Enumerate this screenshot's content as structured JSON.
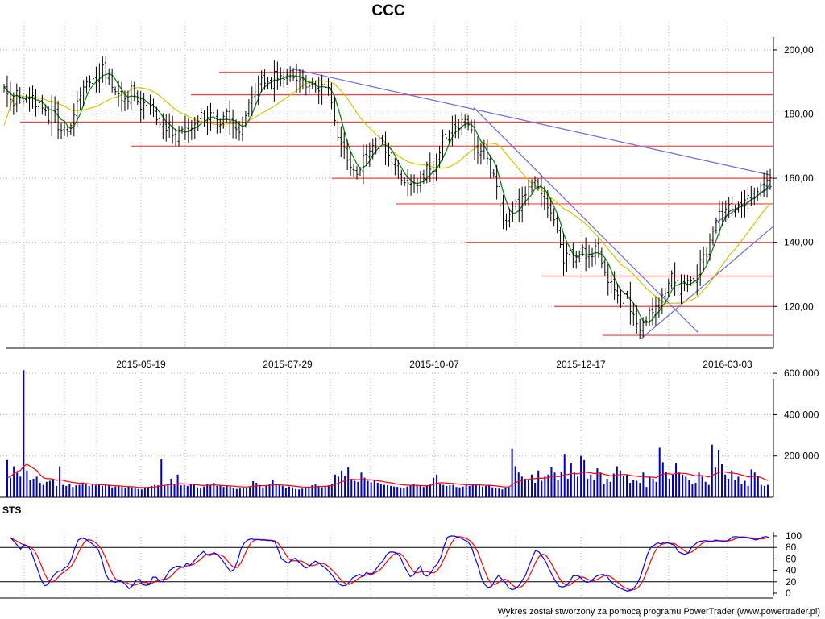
{
  "chart_data": [
    {
      "type": "ohlc",
      "title": "CCC",
      "x_tick_labels": [
        "2015-05-19",
        "2015-07-29",
        "2015-10-07",
        "2015-12-17",
        "2016-03-03"
      ],
      "y_tick_labels": [
        "120,00",
        "140,00",
        "160,00",
        "180,00",
        "200,00"
      ],
      "y_ticks": [
        120,
        140,
        160,
        180,
        200
      ],
      "ylim": [
        107,
        204
      ],
      "grid": true,
      "colors": {
        "bars": "#000000",
        "ma_fast": "#008000",
        "ma_slow": "#d4c600",
        "trendlines": "#6a6ae0",
        "levels": "#ff3b3b"
      },
      "close": [
        188.5,
        186.2,
        184.5,
        182.8,
        187.3,
        185.3,
        183.9,
        185.1,
        184.9,
        185.8,
        182.3,
        183.5,
        181.9,
        181.0,
        177.9,
        182.5,
        180.8,
        175.2,
        174.9,
        175.9,
        174.5,
        176.4,
        179.8,
        184.1,
        185.7,
        188.4,
        190.0,
        189.9,
        191.0,
        190.8,
        192.8,
        195.3,
        191.5,
        192.5,
        188.3,
        187.0,
        186.3,
        184.3,
        184.7,
        184.1,
        188.7,
        185.7,
        184.0,
        181.5,
        183.5,
        183.8,
        182.3,
        181.2,
        178.2,
        176.8,
        176.8,
        175.0,
        177.6,
        173.3,
        172.2,
        175.0,
        175.3,
        175.9,
        174.6,
        175.5,
        176.9,
        177.8,
        180.5,
        177.2,
        178.9,
        180.4,
        178.6,
        176.5,
        176.7,
        179.3,
        180.8,
        177.7,
        176.0,
        175.3,
        174.3,
        177.4,
        179.5,
        183.7,
        185.1,
        186.6,
        189.4,
        191.4,
        189.6,
        190.2,
        188.7,
        193.3,
        191.0,
        192.0,
        190.8,
        192.3,
        193.5,
        191.4,
        190.6,
        190.9,
        190.7,
        188.4,
        188.7,
        189.9,
        187.7,
        187.2,
        189.2,
        188.3,
        188.3,
        183.6,
        178.0,
        172.7,
        170.6,
        169.6,
        165.6,
        163.4,
        162.4,
        161.2,
        162.6,
        167.1,
        167.3,
        168.5,
        170.2,
        169.6,
        172.2,
        171.7,
        168.1,
        167.2,
        164.5,
        163.5,
        161.9,
        159.3,
        158.6,
        158.5,
        158.2,
        158.5,
        157.7,
        160.5,
        159.9,
        164.2,
        162.8,
        162.2,
        165.1,
        167.9,
        173.4,
        172.6,
        174.1,
        176.0,
        176.1,
        175.5,
        178.3,
        178.3,
        176.6,
        175.1,
        169.7,
        168.0,
        168.5,
        169.7,
        166.2,
        161.5,
        161.3,
        157.4,
        151.5,
        147.2,
        146.4,
        148.7,
        151.3,
        152.7,
        150.2,
        154.3,
        154.8,
        157.3,
        157.9,
        159.3,
        157.2,
        155.1,
        153.6,
        150.8,
        149.2,
        147.0,
        144.5,
        139.3,
        133.6,
        136.6,
        137.4,
        134.6,
        135.4,
        136.1,
        138.4,
        135.1,
        136.2,
        135.6,
        138.9,
        137.3,
        133.5,
        130.6,
        127.5,
        127.7,
        125.2,
        123.5,
        121.7,
        123.9,
        123.5,
        118.4,
        117.5,
        114.6,
        112.5,
        114.9,
        115.4,
        118.8,
        118.2,
        120.1,
        119.6,
        123.6,
        124.1,
        127.3,
        130.3,
        127.4,
        124.2,
        127.4,
        127.4,
        128.1,
        128.0,
        127.9,
        129.6,
        134.6,
        136.1,
        135.6,
        141.0,
        143.5,
        146.8,
        149.6,
        148.7,
        150.4,
        151.8,
        150.2,
        150.4,
        151.7,
        151.7,
        153.2,
        154.6,
        155.3,
        153.8,
        155.8,
        157.7,
        158.2,
        159.4,
        160.2
      ]
    },
    {
      "type": "bar",
      "title": "",
      "y_tick_labels": [
        "200 000",
        "400 000",
        "600 000"
      ],
      "y_ticks": [
        200000,
        400000,
        600000
      ],
      "ylim": [
        0,
        620000
      ],
      "colors": {
        "bars": "#0000c0",
        "average": "#ff0000"
      },
      "values": [
        180000,
        95000,
        150000,
        120000,
        100000,
        615000,
        130000,
        85000,
        90000,
        100000,
        70000,
        60000,
        75000,
        80000,
        90000,
        55000,
        150000,
        60000,
        55000,
        65000,
        50000,
        58000,
        60000,
        72000,
        62000,
        55000,
        65000,
        58000,
        62000,
        55000,
        60000,
        58000,
        48000,
        52000,
        55000,
        50000,
        45000,
        52000,
        48000,
        45000,
        40000,
        38000,
        45000,
        50000,
        55000,
        60000,
        58000,
        185000,
        55000,
        60000,
        90000,
        65000,
        110000,
        58000,
        60000,
        55000,
        65000,
        60000,
        48000,
        42000,
        52000,
        65000,
        60000,
        70000,
        55000,
        60000,
        50000,
        58000,
        52000,
        45000,
        40000,
        42000,
        48000,
        45000,
        52000,
        78000,
        70000,
        60000,
        48000,
        55000,
        65000,
        85000,
        62000,
        60000,
        55000,
        45000,
        52000,
        48000,
        40000,
        38000,
        42000,
        45000,
        50000,
        58000,
        62000,
        55000,
        48000,
        52000,
        58000,
        65000,
        110000,
        100000,
        130000,
        105000,
        145000,
        90000,
        80000,
        75000,
        120000,
        95000,
        80000,
        72000,
        85000,
        70000,
        65000,
        60000,
        58000,
        55000,
        52000,
        50000,
        48000,
        45000,
        52000,
        58000,
        65000,
        60000,
        55000,
        50000,
        58000,
        62000,
        95000,
        110000,
        65000,
        60000,
        55000,
        58000,
        60000,
        50000,
        48000,
        52000,
        58000,
        55000,
        60000,
        65000,
        58000,
        52000,
        55000,
        60000,
        48000,
        45000,
        42000,
        38000,
        45000,
        52000,
        235000,
        150000,
        120000,
        100000,
        90000,
        85000,
        110000,
        70000,
        130000,
        80000,
        100000,
        110000,
        145000,
        120000,
        85000,
        125000,
        210000,
        90000,
        165000,
        120000,
        100000,
        200000,
        180000,
        90000,
        110000,
        85000,
        140000,
        120000,
        65000,
        90000,
        75000,
        115000,
        150000,
        130000,
        105000,
        110000,
        70000,
        85000,
        80000,
        70000,
        120000,
        50000,
        100000,
        90000,
        75000,
        240000,
        170000,
        125000,
        90000,
        110000,
        165000,
        120000,
        110000,
        100000,
        85000,
        65000,
        70000,
        120000,
        100000,
        75000,
        60000,
        255000,
        145000,
        230000,
        160000,
        110000,
        90000,
        130000,
        85000,
        100000,
        65000,
        80000,
        55000,
        135000,
        120000,
        100000,
        60000,
        55000,
        60000
      ],
      "average": [
        95000,
        100000,
        115000,
        125000,
        130000,
        150000,
        160000,
        150000,
        140000,
        130000,
        110000,
        95000,
        90000,
        90000,
        88000,
        82000,
        85000,
        82000,
        78000,
        75000,
        72000,
        70000,
        68000,
        68000,
        67000,
        65000,
        64000,
        62000,
        62000,
        60000,
        60000,
        58000,
        57000,
        56000,
        55000,
        54000,
        52000,
        52000,
        51000,
        50000,
        48000,
        47000,
        47000,
        48000,
        49000,
        50000,
        52000,
        56000,
        58000,
        60000,
        62000,
        64000,
        66000,
        66000,
        65000,
        64000,
        63000,
        62000,
        60000,
        58000,
        57000,
        58000,
        59000,
        60000,
        59000,
        58000,
        57000,
        56000,
        55000,
        54000,
        52000,
        51000,
        50000,
        50000,
        51000,
        53000,
        55000,
        56000,
        56000,
        57000,
        58000,
        60000,
        61000,
        60000,
        59000,
        58000,
        57000,
        55000,
        53000,
        51000,
        50000,
        49000,
        49000,
        50000,
        51000,
        52000,
        52000,
        53000,
        54000,
        56000,
        62000,
        68000,
        75000,
        80000,
        85000,
        86000,
        86000,
        85000,
        86000,
        86000,
        85000,
        84000,
        83000,
        80000,
        78000,
        75000,
        72000,
        70000,
        67000,
        64000,
        62000,
        60000,
        59000,
        58000,
        58000,
        58000,
        57000,
        56000,
        56000,
        57000,
        62000,
        68000,
        70000,
        70000,
        69000,
        68000,
        67000,
        65000,
        63000,
        62000,
        61000,
        60000,
        60000,
        60000,
        60000,
        59000,
        58000,
        58000,
        57000,
        55000,
        53000,
        51000,
        50000,
        50000,
        60000,
        70000,
        78000,
        82000,
        85000,
        87000,
        90000,
        90000,
        93000,
        92000,
        93000,
        95000,
        100000,
        102000,
        100000,
        102000,
        110000,
        110000,
        115000,
        115000,
        113000,
        118000,
        122000,
        120000,
        118000,
        115000,
        117000,
        117000,
        112000,
        108000,
        104000,
        104000,
        108000,
        110000,
        110000,
        110000,
        106000,
        104000,
        102000,
        100000,
        102000,
        98000,
        98000,
        97000,
        95000,
        105000,
        112000,
        115000,
        113000,
        112000,
        116000,
        117000,
        116000,
        115000,
        112000,
        108000,
        104000,
        106000,
        105000,
        102000,
        98000,
        108000,
        112000,
        120000,
        124000,
        122000,
        118000,
        118000,
        115000,
        113000,
        108000,
        104000,
        98000,
        100000,
        102000,
        100000,
        95000,
        88000,
        82000
      ]
    },
    {
      "type": "line",
      "title": "STS",
      "y_tick_labels": [
        "0",
        "20",
        "40",
        "60",
        "80",
        "100"
      ],
      "y_ticks": [
        0,
        20,
        40,
        60,
        80,
        100
      ],
      "ylim": [
        0,
        100
      ],
      "levels": [
        20,
        80
      ],
      "colors": {
        "k": "#0000ff",
        "d": "#ff0000",
        "levels": "#000000"
      },
      "k": [
        97,
        91,
        84,
        77,
        85,
        83,
        75,
        58,
        42,
        25,
        13,
        15,
        25,
        33,
        38,
        39,
        44,
        48,
        60,
        79,
        93,
        96,
        95,
        91,
        87,
        82,
        75,
        58,
        35,
        24,
        21,
        19,
        23,
        20,
        15,
        8,
        13,
        22,
        25,
        15,
        14,
        15,
        28,
        28,
        21,
        20,
        30,
        40,
        44,
        47,
        47,
        45,
        52,
        49,
        55,
        62,
        68,
        73,
        67,
        66,
        71,
        68,
        62,
        54,
        45,
        38,
        42,
        56,
        77,
        88,
        93,
        95,
        94,
        94,
        93,
        93,
        92,
        92,
        90,
        76,
        60,
        56,
        52,
        58,
        61,
        55,
        50,
        44,
        46,
        52,
        56,
        53,
        48,
        44,
        38,
        31,
        23,
        16,
        13,
        14,
        19,
        27,
        30,
        33,
        29,
        36,
        34,
        35,
        43,
        51,
        57,
        67,
        72,
        72,
        70,
        64,
        50,
        39,
        29,
        32,
        41,
        47,
        32,
        30,
        35,
        45,
        51,
        63,
        83,
        98,
        100,
        100,
        98,
        96,
        93,
        90,
        82,
        64,
        48,
        27,
        15,
        10,
        12,
        23,
        31,
        25,
        19,
        10,
        6,
        8,
        13,
        22,
        31,
        47,
        62,
        75,
        72,
        64,
        55,
        42,
        30,
        20,
        12,
        11,
        13,
        20,
        30,
        31,
        29,
        23,
        19,
        20,
        25,
        30,
        32,
        33,
        30,
        22,
        16,
        12,
        9,
        6,
        4,
        5,
        9,
        17,
        30,
        49,
        68,
        80,
        84,
        88,
        86,
        89,
        88,
        86,
        84,
        73,
        70,
        68,
        70,
        80,
        85,
        90,
        91,
        92,
        91,
        90,
        93,
        92,
        91,
        90,
        93,
        98,
        99,
        98,
        98,
        97,
        96,
        95,
        93,
        95,
        98,
        99,
        97
      ]
    }
  ],
  "footer": "Wykres został stworzony za pomocą programu PowerTrader (www.powertrader.pl)"
}
